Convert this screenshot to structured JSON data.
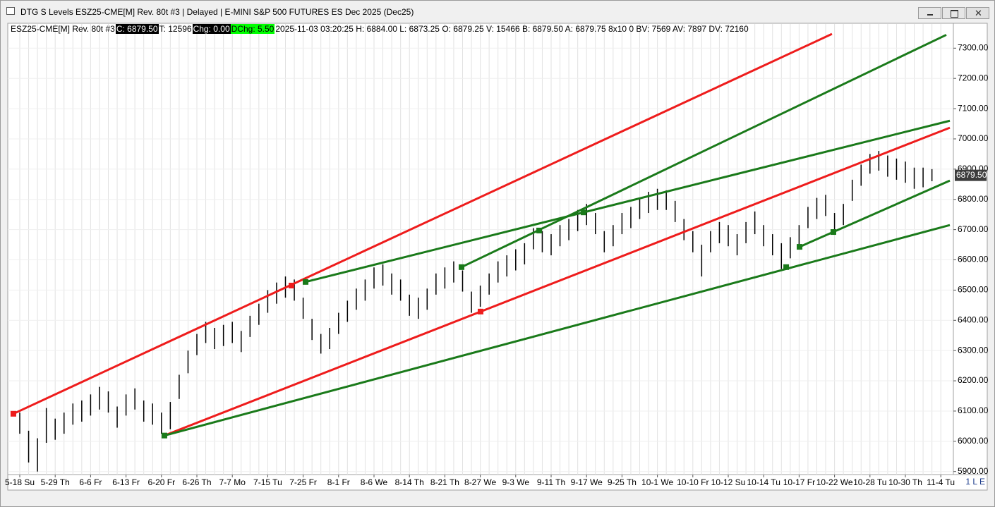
{
  "window": {
    "title": "DTG S Levels ESZ25-CME[M]  Rev. 80t #3 | Delayed | E-MINI S&P 500 FUTURES ES Dec 2025 (Dec25)",
    "status": "1 L E"
  },
  "info_bar": [
    {
      "text": "ESZ25-CME[M]  Rev. 80t #3",
      "background": "transparent",
      "color": "#000000"
    },
    {
      "text": "C: 6879.50",
      "background": "#000000",
      "color": "#ffffff"
    },
    {
      "text": "T: 12596",
      "background": "transparent",
      "color": "#000000"
    },
    {
      "text": "Chg: 0.00",
      "background": "#000000",
      "color": "#ffffff"
    },
    {
      "text": "DChg: 5.50",
      "background": "#00ff00",
      "color": "#000000"
    },
    {
      "text": "2025-11-03 03:20:25 H: 6884.00 L: 6873.25 O: 6879.25 V: 15466 B: 6879.50 A: 6879.75 8x10 0 BV: 7569 AV: 7897 DV: 72160",
      "background": "transparent",
      "color": "#000000"
    }
  ],
  "chart_data": {
    "type": "price-bars",
    "color": "#000000",
    "grid": true,
    "categories": [
      "5-18 Su",
      null,
      null,
      null,
      "5-29 Th",
      null,
      null,
      null,
      "6-6 Fr",
      null,
      null,
      null,
      "6-13 Fr",
      null,
      null,
      null,
      "6-20 Fr",
      null,
      null,
      null,
      "6-26 Th",
      null,
      null,
      null,
      "7-7 Mo",
      null,
      null,
      null,
      "7-15 Tu",
      null,
      null,
      null,
      "7-25 Fr",
      null,
      null,
      null,
      "8-1 Fr",
      null,
      null,
      null,
      "8-6 We",
      null,
      null,
      null,
      "8-14 Th",
      null,
      null,
      null,
      "8-21 Th",
      null,
      null,
      null,
      "8-27 We",
      null,
      null,
      null,
      "9-3 We",
      null,
      null,
      null,
      "9-11 Th",
      null,
      null,
      null,
      "9-17 We",
      null,
      null,
      null,
      "9-25 Th",
      null,
      null,
      null,
      "10-1 We",
      null,
      null,
      null,
      "10-10 Fr",
      null,
      null,
      null,
      "10-12 Su",
      null,
      null,
      null,
      "10-14 Tu",
      null,
      null,
      null,
      "10-17 Fr",
      null,
      null,
      null,
      "10-22 We",
      null,
      null,
      null,
      "10-28 Tu",
      null,
      null,
      null,
      "10-30 Th",
      null,
      null,
      null,
      "11-4 Tu"
    ],
    "highs": [
      6095,
      6035,
      6010,
      6110,
      6075,
      6095,
      6125,
      6135,
      6155,
      6180,
      6165,
      6115,
      6155,
      6175,
      6135,
      6125,
      6095,
      6130,
      6220,
      6300,
      6355,
      6395,
      6375,
      6385,
      6395,
      6365,
      6415,
      6455,
      6500,
      6525,
      6545,
      6535,
      6475,
      6405,
      6355,
      6375,
      6425,
      6465,
      6505,
      6535,
      6575,
      6585,
      6555,
      6535,
      6485,
      6475,
      6505,
      6555,
      6575,
      6595,
      6565,
      6495,
      6515,
      6555,
      6595,
      6615,
      6635,
      6655,
      6705,
      6695,
      6685,
      6715,
      6735,
      6765,
      6785,
      6755,
      6695,
      6715,
      6755,
      6775,
      6805,
      6825,
      6835,
      6830,
      6795,
      6735,
      6695,
      6650,
      6695,
      6725,
      6715,
      6685,
      6725,
      6760,
      6715,
      6685,
      6655,
      6675,
      6715,
      6775,
      6805,
      6815,
      6755,
      6785,
      6865,
      6915,
      6950,
      6960,
      6945,
      6935,
      6925,
      6905,
      6905,
      6900,
      null
    ],
    "lows": [
      6025,
      5930,
      5900,
      5995,
      6005,
      6025,
      6055,
      6065,
      6085,
      6105,
      6095,
      6045,
      6085,
      6105,
      6065,
      6055,
      6025,
      6040,
      6140,
      6225,
      6285,
      6325,
      6305,
      6315,
      6325,
      6295,
      6345,
      6385,
      6425,
      6455,
      6475,
      6465,
      6405,
      6335,
      6290,
      6305,
      6355,
      6395,
      6435,
      6465,
      6505,
      6515,
      6485,
      6465,
      6415,
      6405,
      6435,
      6485,
      6505,
      6525,
      6495,
      6425,
      6445,
      6485,
      6525,
      6545,
      6565,
      6585,
      6635,
      6625,
      6615,
      6645,
      6665,
      6695,
      6715,
      6685,
      6625,
      6645,
      6685,
      6705,
      6735,
      6755,
      6765,
      6765,
      6725,
      6665,
      6625,
      6545,
      6625,
      6655,
      6645,
      6615,
      6655,
      6685,
      6645,
      6615,
      6570,
      6605,
      6645,
      6705,
      6735,
      6745,
      6685,
      6715,
      6795,
      6845,
      6885,
      6895,
      6875,
      6865,
      6855,
      6835,
      6840,
      6860,
      null
    ],
    "ylim": [
      5890,
      7380
    ],
    "yticks": [
      {
        "value": 5900,
        "label": "5900.00"
      },
      {
        "value": 6000,
        "label": "6000.00"
      },
      {
        "value": 6100,
        "label": "6100.00"
      },
      {
        "value": 6200,
        "label": "6200.00"
      },
      {
        "value": 6300,
        "label": "6300.00"
      },
      {
        "value": 6400,
        "label": "6400.00"
      },
      {
        "value": 6500,
        "label": "6500.00"
      },
      {
        "value": 6600,
        "label": "6600.00"
      },
      {
        "value": 6700,
        "label": "6700.00"
      },
      {
        "value": 6800,
        "label": "6800.00"
      },
      {
        "value": 6900,
        "label": "6900.00"
      },
      {
        "value": 7000,
        "label": "7000.00"
      },
      {
        "value": 7100,
        "label": "7100.00"
      },
      {
        "value": 7200,
        "label": "7200.00"
      },
      {
        "value": 7300,
        "label": "7300.00"
      }
    ],
    "last_price": {
      "value": 6879.5,
      "label": "6879.50"
    },
    "trendlines": [
      {
        "color": "#ee1c1c",
        "x": [
          -0.72,
          91.71
        ],
        "y": [
          6091,
          7347
        ],
        "markers": {
          "x": [
            -0.72,
            30.68
          ],
          "y": [
            6091,
            6515
          ]
        }
      },
      {
        "color": "#ee1c1c",
        "x": [
          16.33,
          105.02
        ],
        "y": [
          6019,
          7037
        ],
        "markers": {
          "x": [
            52.03
          ],
          "y": [
            6429
          ]
        }
      },
      {
        "color": "#1a7a1a",
        "x": [
          16.33,
          105.02
        ],
        "y": [
          6019,
          6715
        ],
        "markers": {
          "x": [
            16.33,
            86.54
          ],
          "y": [
            6019,
            6576
          ]
        }
      },
      {
        "color": "#1a7a1a",
        "x": [
          32.27,
          105.02
        ],
        "y": [
          6527,
          7060
        ],
        "markers": {
          "x": [
            32.27
          ],
          "y": [
            6527
          ]
        }
      },
      {
        "color": "#1a7a1a",
        "x": [
          49.88,
          104.62
        ],
        "y": [
          6576,
          7344
        ],
        "markers": {
          "x": [
            49.88,
            58.65,
            63.67
          ],
          "y": [
            6576,
            6697,
            6757
          ]
        }
      },
      {
        "color": "#1a7a1a",
        "x": [
          88.05,
          105.02
        ],
        "y": [
          6643,
          6862
        ],
        "markers": {
          "x": [
            88.05,
            91.87
          ],
          "y": [
            6643,
            6692
          ]
        }
      }
    ]
  }
}
